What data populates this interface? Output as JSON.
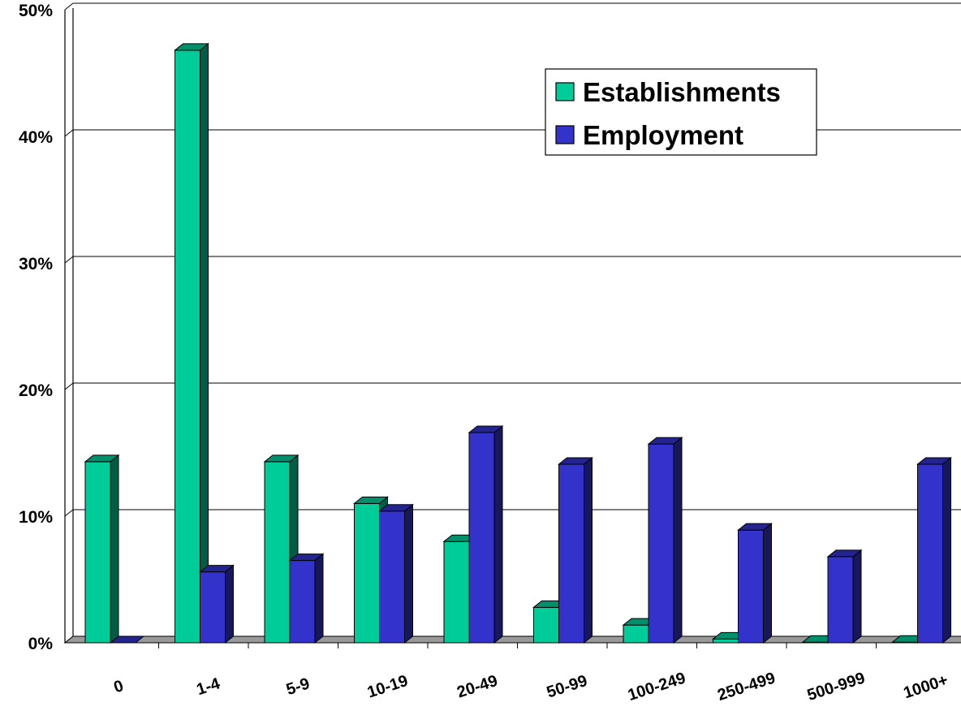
{
  "chart_data": {
    "type": "bar",
    "title": "",
    "xlabel": "",
    "ylabel": "",
    "categories": [
      "0",
      "1-4",
      "5-9",
      "10-19",
      "20-49",
      "50-99",
      "100-249",
      "250-499",
      "500-999",
      "1000+"
    ],
    "series": [
      {
        "name": "Establishments",
        "color": "#00cc99",
        "values": [
          14.3,
          46.8,
          14.3,
          11.0,
          8.0,
          2.8,
          1.4,
          0.3,
          0.05,
          0.05
        ]
      },
      {
        "name": "Employment",
        "color": "#3333cc",
        "values": [
          0.0,
          5.6,
          6.5,
          10.4,
          16.6,
          14.1,
          15.7,
          8.9,
          6.8,
          14.1
        ]
      }
    ],
    "ylim": [
      0,
      50
    ],
    "yticks": [
      "0%",
      "10%",
      "20%",
      "30%",
      "40%",
      "50%"
    ],
    "grid": true,
    "legend": "top-right",
    "style": "3d-column"
  }
}
